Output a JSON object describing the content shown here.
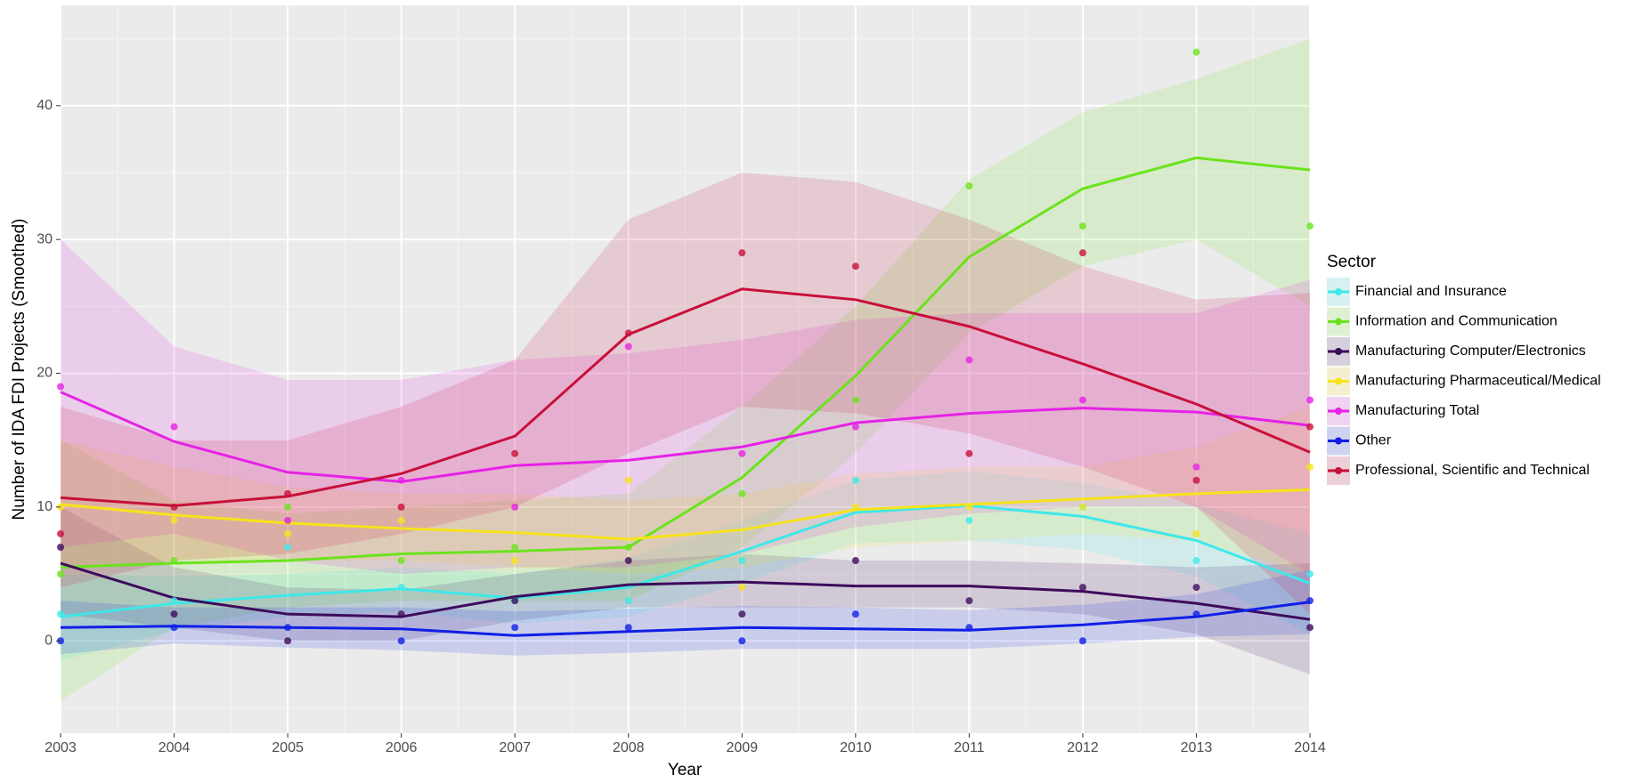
{
  "chart_data": {
    "type": "line",
    "x_label": "Year",
    "y_label": "Number of IDA FDI Projects (Smoothed)",
    "legend_title": "Sector",
    "legend_position": "right",
    "grid": true,
    "x": [
      2003,
      2004,
      2005,
      2006,
      2007,
      2008,
      2009,
      2010,
      2011,
      2012,
      2013,
      2014
    ],
    "xlim": [
      2003,
      2014
    ],
    "xticks": [
      2003,
      2004,
      2005,
      2006,
      2007,
      2008,
      2009,
      2010,
      2011,
      2012,
      2013,
      2014
    ],
    "ylim": [
      -6.9,
      47.5
    ],
    "yticks": [
      0,
      10,
      20,
      30,
      40
    ],
    "series": [
      {
        "name": "Financial and Insurance",
        "color": "#3ee8e8",
        "values": [
          1.8,
          2.8,
          3.4,
          3.9,
          3.2,
          4.0,
          6.7,
          9.6,
          10.1,
          9.3,
          7.5,
          4.3
        ],
        "points": [
          2,
          3,
          7,
          4,
          3,
          3,
          6,
          12,
          9,
          10,
          6,
          5
        ],
        "lower": [
          -1.5,
          0.8,
          1.8,
          2.2,
          1.3,
          1.8,
          4.3,
          7.3,
          7.5,
          6.8,
          4.8,
          0.5
        ],
        "upper": [
          5,
          4.8,
          5,
          5.5,
          5,
          6.2,
          9,
          12,
          12.7,
          11.8,
          10.2,
          8
        ]
      },
      {
        "name": "Information and Communication",
        "color": "#6be31c",
        "values": [
          5.5,
          5.8,
          6.0,
          6.5,
          6.7,
          7.0,
          12.2,
          19.8,
          28.7,
          33.8,
          36.1,
          35.2
        ],
        "points": [
          5,
          6,
          10,
          6,
          7,
          7,
          11,
          18,
          34,
          31,
          44,
          31
        ],
        "lower": [
          -4.5,
          1,
          2.5,
          3,
          3,
          3,
          7,
          14,
          23,
          28,
          30,
          25
        ],
        "upper": [
          15,
          10.5,
          9.5,
          10,
          10.5,
          11,
          17.5,
          25,
          34.5,
          39.5,
          42,
          45
        ]
      },
      {
        "name": "Manufacturing Computer/Electronics",
        "color": "#3d0b5c",
        "values": [
          5.8,
          3.2,
          2.0,
          1.8,
          3.3,
          4.2,
          4.4,
          4.1,
          4.1,
          3.7,
          2.8,
          1.6
        ],
        "points": [
          7,
          2,
          0,
          2,
          3,
          6,
          2,
          6,
          3,
          4,
          4,
          1
        ],
        "lower": [
          2,
          1,
          0,
          0,
          1.5,
          2.5,
          2.5,
          2.5,
          2.5,
          2,
          0.5,
          -2.5
        ],
        "upper": [
          10,
          5.5,
          4,
          3.8,
          5,
          6,
          6.5,
          6,
          6,
          5.8,
          5.5,
          5.8
        ]
      },
      {
        "name": "Manufacturing Pharmaceutical/Medical",
        "color": "#f7e31b",
        "values": [
          10.2,
          9.4,
          8.8,
          8.4,
          8.1,
          7.6,
          8.3,
          9.8,
          10.2,
          10.6,
          11.0,
          11.3
        ],
        "points": [
          10,
          9,
          8,
          9,
          6,
          12,
          4,
          10,
          10,
          10,
          8,
          13
        ],
        "lower": [
          5.5,
          6,
          6,
          6,
          5.5,
          5,
          5.5,
          7,
          7.5,
          8,
          7.5,
          5
        ],
        "upper": [
          15,
          13,
          11.5,
          11,
          11,
          10.5,
          11,
          12.5,
          13,
          13,
          14.5,
          17.5
        ]
      },
      {
        "name": "Manufacturing Total",
        "color": "#e622e6",
        "values": [
          18.6,
          14.9,
          12.6,
          11.9,
          13.1,
          13.5,
          14.5,
          16.3,
          17.0,
          17.4,
          17.1,
          16.1
        ],
        "points": [
          19,
          16,
          9,
          12,
          10,
          22,
          14,
          16,
          21,
          18,
          13,
          18
        ],
        "lower": [
          7,
          8,
          6,
          5,
          5.5,
          5.5,
          6.5,
          8.5,
          9.5,
          10,
          10,
          5
        ],
        "upper": [
          30,
          22,
          19.5,
          19.5,
          21,
          21.5,
          22.5,
          24,
          24.5,
          24.5,
          24.5,
          27
        ]
      },
      {
        "name": "Other",
        "color": "#0f1fe6",
        "values": [
          1.0,
          1.1,
          1.0,
          0.9,
          0.4,
          0.7,
          1.0,
          0.9,
          0.8,
          1.2,
          1.8,
          2.9
        ],
        "points": [
          0,
          1,
          1,
          0,
          1,
          1,
          0,
          2,
          1,
          0,
          2,
          3
        ],
        "lower": [
          -1,
          -0.2,
          -0.5,
          -0.7,
          -1.1,
          -0.9,
          -0.6,
          -0.6,
          -0.6,
          -0.2,
          0.3,
          0.5
        ],
        "upper": [
          3,
          2.5,
          2.5,
          2.5,
          2.2,
          2.4,
          2.6,
          2.5,
          2.3,
          2.7,
          3.5,
          5.3
        ]
      },
      {
        "name": "Professional, Scientific and Technical",
        "color": "#c8103a",
        "values": [
          10.7,
          10.1,
          10.8,
          12.5,
          15.3,
          22.9,
          26.3,
          25.5,
          23.5,
          20.7,
          17.7,
          14.1
        ],
        "points": [
          8,
          10,
          11,
          10,
          14,
          23,
          29,
          28,
          14,
          29,
          12,
          16
        ],
        "lower": [
          4,
          6,
          6.5,
          8,
          10,
          14,
          17.5,
          17,
          15.5,
          13,
          10,
          2
        ],
        "upper": [
          17.5,
          15,
          15,
          17.5,
          21,
          31.5,
          35,
          34.3,
          31.5,
          28,
          25.5,
          26
        ]
      }
    ]
  }
}
